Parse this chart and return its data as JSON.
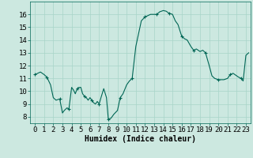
{
  "title": "",
  "xlabel": "Humidex (Indice chaleur)",
  "ylabel": "",
  "bg_color": "#cce8e0",
  "line_color": "#006655",
  "marker": "+",
  "grid_color": "#a8d4c8",
  "xlim": [
    -0.5,
    23.5
  ],
  "ylim": [
    7.5,
    17.0
  ],
  "xticks": [
    0,
    1,
    2,
    3,
    4,
    5,
    6,
    7,
    8,
    9,
    10,
    11,
    12,
    13,
    14,
    15,
    16,
    17,
    18,
    19,
    20,
    21,
    22,
    23
  ],
  "yticks": [
    8,
    9,
    10,
    11,
    12,
    13,
    14,
    15,
    16
  ],
  "x": [
    0,
    0.3,
    0.6,
    1.0,
    1.3,
    1.7,
    2.0,
    2.3,
    2.7,
    3.0,
    3.2,
    3.5,
    3.7,
    4.0,
    4.2,
    4.4,
    4.6,
    4.8,
    5.0,
    5.2,
    5.4,
    5.6,
    5.8,
    6.0,
    6.2,
    6.4,
    6.6,
    6.8,
    7.0,
    7.2,
    7.5,
    7.8,
    8.0,
    8.3,
    8.6,
    9.0,
    9.3,
    9.6,
    10.0,
    10.3,
    10.6,
    11.0,
    11.3,
    11.6,
    12.0,
    12.3,
    12.6,
    13.0,
    13.3,
    13.6,
    14.0,
    14.3,
    14.6,
    15.0,
    15.3,
    15.6,
    16.0,
    16.3,
    16.6,
    17.0,
    17.3,
    17.6,
    18.0,
    18.3,
    18.6,
    19.0,
    19.3,
    19.6,
    20.0,
    20.3,
    20.6,
    21.0,
    21.3,
    21.6,
    22.0,
    22.2,
    22.5,
    22.7,
    23.0,
    23.3
  ],
  "y": [
    11.3,
    11.4,
    11.5,
    11.3,
    11.1,
    10.5,
    9.5,
    9.3,
    9.4,
    8.3,
    8.5,
    8.7,
    8.6,
    10.3,
    10.1,
    9.8,
    10.2,
    10.3,
    10.3,
    9.8,
    9.6,
    9.5,
    9.3,
    9.5,
    9.3,
    9.1,
    9.0,
    9.2,
    9.0,
    9.5,
    10.2,
    9.5,
    7.8,
    7.9,
    8.2,
    8.5,
    9.5,
    9.8,
    10.5,
    10.8,
    11.0,
    13.5,
    14.5,
    15.5,
    15.8,
    15.9,
    16.0,
    16.0,
    16.0,
    16.2,
    16.3,
    16.25,
    16.1,
    16.0,
    15.5,
    15.2,
    14.3,
    14.1,
    14.0,
    13.5,
    13.2,
    13.3,
    13.1,
    13.2,
    13.0,
    12.0,
    11.2,
    11.0,
    10.9,
    10.9,
    10.9,
    11.0,
    11.3,
    11.4,
    11.2,
    11.1,
    11.0,
    10.8,
    12.8,
    13.0
  ],
  "xlabel_fontsize": 7,
  "tick_fontsize": 6.5,
  "linewidth": 0.8,
  "markersize": 2.5,
  "markevery": 4
}
